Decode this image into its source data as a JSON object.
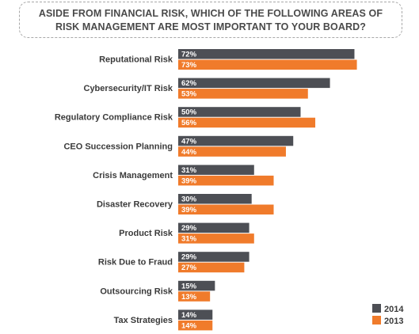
{
  "title": {
    "line1": "ASIDE FROM FINANCIAL RISK, WHICH OF THE FOLLOWING AREAS OF",
    "line2": "RISK MANAGEMENT ARE MOST IMPORTANT TO YOUR BOARD?"
  },
  "colors": {
    "series_2014": "#4d4f55",
    "series_2013": "#f07b2b",
    "title_border": "#a8a8a8"
  },
  "chart_data": {
    "type": "bar",
    "orientation": "horizontal",
    "title": "ASIDE FROM FINANCIAL RISK, WHICH OF THE FOLLOWING AREAS OF RISK MANAGEMENT ARE MOST IMPORTANT TO YOUR BOARD?",
    "categories": [
      "Reputational Risk",
      "Cybersecurity/IT Risk",
      "Regulatory Compliance Risk",
      "CEO Succession Planning",
      "Crisis Management",
      "Disaster Recovery",
      "Product Risk",
      "Risk Due to Fraud",
      "Outsourcing Risk",
      "Tax Strategies"
    ],
    "series": [
      {
        "name": "2014",
        "values": [
          72,
          62,
          50,
          47,
          31,
          30,
          29,
          29,
          15,
          14
        ],
        "labels": [
          "72%",
          "62%",
          "50%",
          "47%",
          "31%",
          "30%",
          "29%",
          "29%",
          "15%",
          "14%"
        ],
        "color": "#4d4f55"
      },
      {
        "name": "2013",
        "values": [
          73,
          53,
          56,
          44,
          39,
          39,
          31,
          27,
          13,
          14
        ],
        "labels": [
          "73%",
          "53%",
          "56%",
          "44%",
          "39%",
          "39%",
          "31%",
          "27%",
          "13%",
          "14%"
        ],
        "color": "#f07b2b"
      }
    ],
    "unit": "%",
    "xlim": [
      0,
      100
    ],
    "grid": false,
    "legend_position": "bottom-right"
  }
}
